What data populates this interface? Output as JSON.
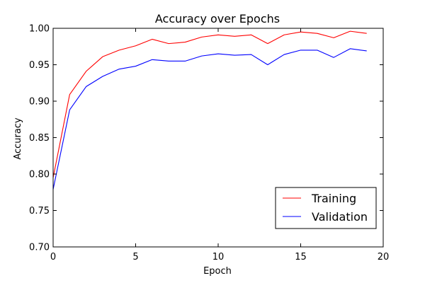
{
  "chart_data": {
    "type": "line",
    "title": "Accuracy over Epochs",
    "xlabel": "Epoch",
    "ylabel": "Accuracy",
    "xlim": [
      0,
      20
    ],
    "ylim": [
      0.7,
      1.0
    ],
    "xticks": [
      "0",
      "5",
      "10",
      "15",
      "20"
    ],
    "yticks": [
      "0.70",
      "0.75",
      "0.80",
      "0.85",
      "0.90",
      "0.95",
      "1.00"
    ],
    "grid": false,
    "legend_position": "lower-right",
    "x": [
      0,
      1,
      2,
      3,
      4,
      5,
      6,
      7,
      8,
      9,
      10,
      11,
      12,
      13,
      14,
      15,
      16,
      17,
      18,
      19
    ],
    "series": [
      {
        "name": "Training",
        "color": "#ff0000",
        "values": [
          0.795,
          0.909,
          0.941,
          0.961,
          0.97,
          0.976,
          0.985,
          0.979,
          0.981,
          0.988,
          0.991,
          0.989,
          0.991,
          0.979,
          0.991,
          0.995,
          0.993,
          0.987,
          0.996,
          0.993
        ]
      },
      {
        "name": "Validation",
        "color": "#0000ff",
        "values": [
          0.779,
          0.888,
          0.92,
          0.934,
          0.944,
          0.948,
          0.957,
          0.955,
          0.955,
          0.962,
          0.965,
          0.963,
          0.964,
          0.95,
          0.964,
          0.97,
          0.97,
          0.96,
          0.972,
          0.969
        ]
      }
    ]
  }
}
